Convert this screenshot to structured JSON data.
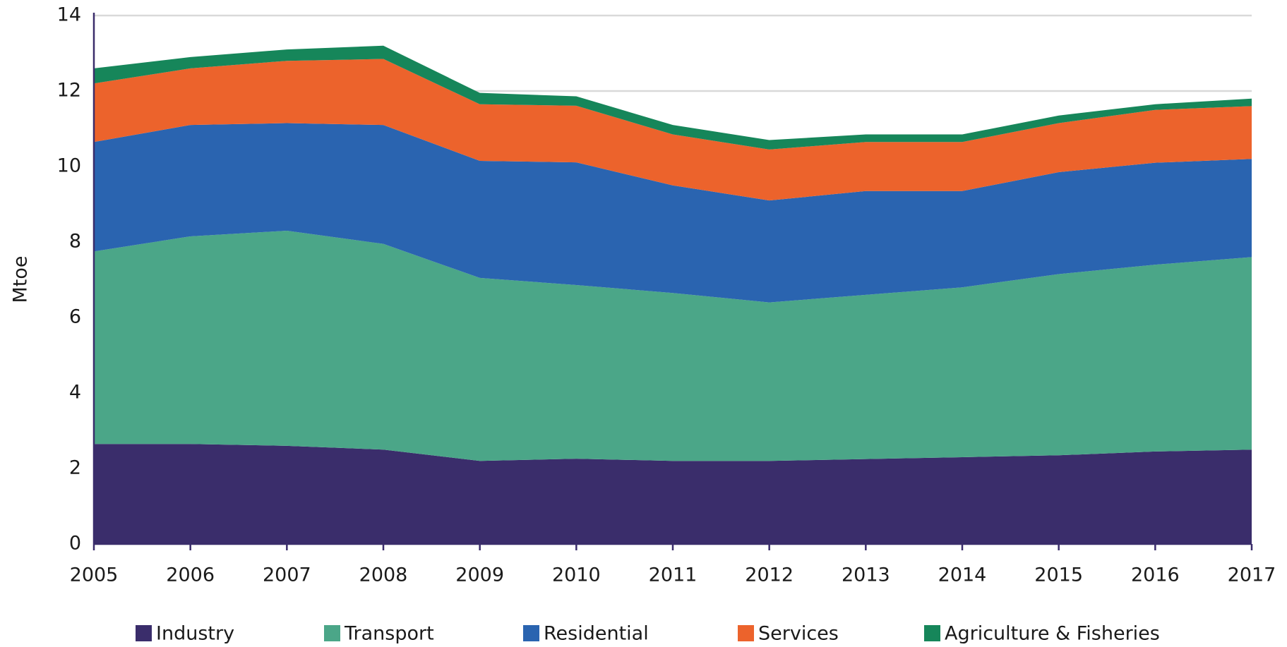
{
  "chart_data": {
    "type": "stacked_area",
    "ylabel": "Mtoe",
    "x": [
      2005,
      2006,
      2007,
      2008,
      2009,
      2010,
      2011,
      2012,
      2013,
      2014,
      2015,
      2016,
      2017
    ],
    "xlim": [
      2005,
      2017
    ],
    "xticks": [
      2005,
      2006,
      2007,
      2008,
      2009,
      2010,
      2011,
      2012,
      2013,
      2014,
      2015,
      2016,
      2017
    ],
    "ylim": [
      0,
      14
    ],
    "yticks": [
      0,
      2,
      4,
      6,
      8,
      10,
      12,
      14
    ],
    "grid": true,
    "legend": "bottom",
    "series": [
      {
        "name": "Industry",
        "color": "#3a2d6b",
        "values": [
          2.65,
          2.65,
          2.6,
          2.5,
          2.2,
          2.26,
          2.2,
          2.2,
          2.25,
          2.3,
          2.35,
          2.45,
          2.5
        ]
      },
      {
        "name": "Transport",
        "color": "#4ba688",
        "values": [
          5.1,
          5.5,
          5.7,
          5.45,
          4.85,
          4.6,
          4.45,
          4.2,
          4.35,
          4.5,
          4.8,
          4.95,
          5.1
        ]
      },
      {
        "name": "Residential",
        "color": "#2a64b0",
        "values": [
          2.9,
          2.95,
          2.85,
          3.15,
          3.1,
          3.25,
          2.85,
          2.7,
          2.75,
          2.55,
          2.7,
          2.7,
          2.6
        ]
      },
      {
        "name": "Services",
        "color": "#ec632c",
        "values": [
          1.55,
          1.5,
          1.65,
          1.75,
          1.5,
          1.5,
          1.35,
          1.35,
          1.3,
          1.3,
          1.3,
          1.4,
          1.4
        ]
      },
      {
        "name": "Agriculture & Fisheries",
        "color": "#16865a",
        "values": [
          0.4,
          0.3,
          0.3,
          0.35,
          0.3,
          0.25,
          0.25,
          0.25,
          0.2,
          0.2,
          0.2,
          0.15,
          0.2
        ]
      }
    ]
  }
}
